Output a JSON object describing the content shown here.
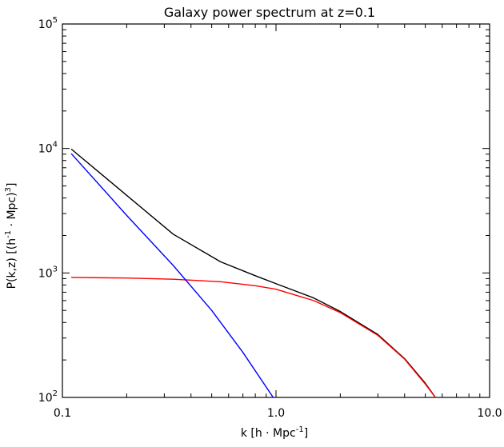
{
  "chart_data": {
    "type": "line",
    "title": "Galaxy power spectrum at z=0.1",
    "xlabel": {
      "prefix": "k  [h · Mpc",
      "sup": "-1",
      "suffix": "]"
    },
    "ylabel": {
      "prefix": "P(k,z)  [(h",
      "sup1": "-1",
      "mid": " · Mpc)",
      "sup2": "3",
      "suffix": "]"
    },
    "xscale": "log",
    "yscale": "log",
    "xlim": [
      0.1,
      10.0
    ],
    "ylim": [
      100,
      100000
    ],
    "grid": false,
    "xticks": [
      {
        "value": 0.1,
        "label": "0.1"
      },
      {
        "value": 1.0,
        "label": "1.0"
      },
      {
        "value": 10.0,
        "label": "10.0"
      }
    ],
    "yticks": [
      {
        "value": 100,
        "base": "10",
        "exp": "2"
      },
      {
        "value": 1000,
        "base": "10",
        "exp": "3"
      },
      {
        "value": 10000,
        "base": "10",
        "exp": "4"
      },
      {
        "value": 100000,
        "base": "10",
        "exp": "5"
      }
    ],
    "series": [
      {
        "color": "#000000",
        "points": [
          [
            0.11,
            9900
          ],
          [
            0.2,
            4200
          ],
          [
            0.33,
            2050
          ],
          [
            0.55,
            1230
          ],
          [
            0.8,
            950
          ],
          [
            1.0,
            820
          ],
          [
            1.5,
            630
          ],
          [
            2.0,
            490
          ],
          [
            3.0,
            320
          ],
          [
            4.0,
            205
          ],
          [
            5.0,
            130
          ],
          [
            5.7,
            95
          ]
        ]
      },
      {
        "color": "#ff0000",
        "points": [
          [
            0.11,
            920
          ],
          [
            0.2,
            910
          ],
          [
            0.33,
            890
          ],
          [
            0.55,
            850
          ],
          [
            0.8,
            790
          ],
          [
            1.0,
            740
          ],
          [
            1.5,
            600
          ],
          [
            2.0,
            480
          ],
          [
            3.0,
            315
          ],
          [
            4.0,
            203
          ],
          [
            5.0,
            128
          ],
          [
            5.7,
            95
          ]
        ]
      },
      {
        "color": "#0000ff",
        "points": [
          [
            0.11,
            9100
          ],
          [
            0.2,
            2900
          ],
          [
            0.33,
            1150
          ],
          [
            0.5,
            500
          ],
          [
            0.7,
            230
          ],
          [
            0.97,
            100
          ]
        ]
      }
    ]
  }
}
